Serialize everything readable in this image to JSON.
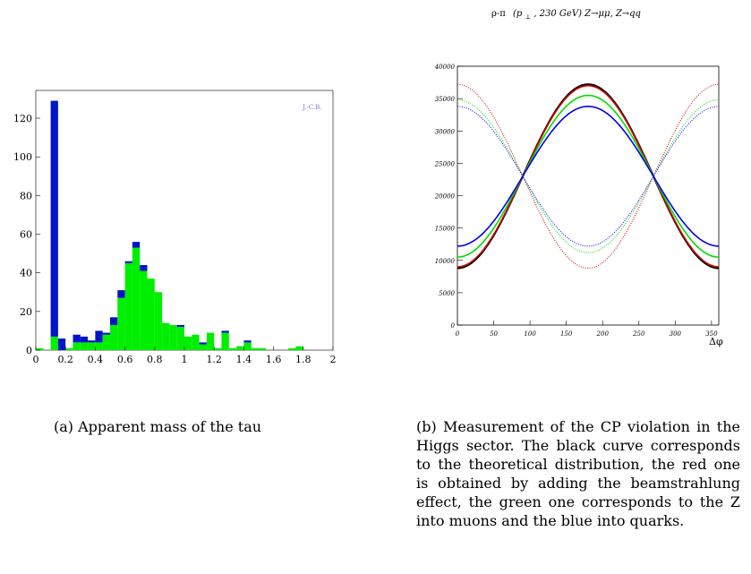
{
  "chart_data": [
    {
      "type": "bar",
      "stacked": true,
      "caption_label": "(a)",
      "caption_text": "Apparent mass of the tau",
      "watermark": "J.-C.B.",
      "xlim": [
        0,
        2
      ],
      "ylim": [
        0,
        130
      ],
      "xticks": [
        "0",
        "0.2",
        "0.4",
        "0.6",
        "0.8",
        "1",
        "1.2",
        "1.4",
        "1.6",
        "1.8",
        "2"
      ],
      "yticks": [
        "0",
        "20",
        "40",
        "60",
        "80",
        "100",
        "120"
      ],
      "bin_width": 0.05,
      "bin_start": 0,
      "colors": {
        "base": "#00ee00",
        "top": "#0014c8"
      },
      "series": [
        {
          "color": "#00ee00",
          "values": [
            1,
            0,
            7,
            0,
            1,
            4,
            4,
            4,
            4,
            8,
            13,
            27,
            45,
            53,
            41,
            37,
            30,
            14,
            13,
            12,
            7,
            8,
            3,
            9,
            1,
            9,
            1,
            2,
            4,
            1,
            1,
            0,
            0,
            0,
            1,
            2,
            0,
            0,
            0,
            0
          ]
        },
        {
          "color": "#0014c8",
          "values": [
            0,
            0,
            122,
            6,
            0,
            4,
            3,
            1,
            6,
            1,
            4,
            4,
            1,
            3,
            3,
            0,
            0,
            0,
            0,
            1,
            0,
            0,
            1,
            0,
            0,
            1,
            0,
            0,
            1,
            0,
            0,
            0,
            0,
            0,
            0,
            0,
            0,
            0,
            0,
            0
          ]
        }
      ]
    },
    {
      "type": "line",
      "title": "ρ-π  (p⊥,  230 GeV) Z→μμ, Z→qq",
      "title_parts": {
        "a": "ρ-π",
        "b": "(p",
        "sub": "⊥",
        "c": ", 230 GeV) Z→μμ, Z→qq"
      },
      "xlabel": "Δφ",
      "xlim": [
        0,
        360
      ],
      "ylim": [
        0,
        40000
      ],
      "xticks": [
        "0",
        "50",
        "100",
        "150",
        "200",
        "250",
        "300",
        "350"
      ],
      "yticks": [
        "0",
        "5000",
        "10000",
        "15000",
        "20000",
        "25000",
        "30000",
        "35000",
        "40000"
      ],
      "caption_label": "(b)",
      "caption_text": "Measurement of the CP violation in the Higgs sector. The black curve corresponds to the theoretical distribution, the red one is obtained by adding the beamstrahlung effect, the green one corresponds to the Z into muons and the blue into quarks.",
      "series": [
        {
          "color": "#000000",
          "style": "solid",
          "center": 23000,
          "amplitude": -14200
        },
        {
          "color": "#d00000",
          "style": "solid",
          "center": 23000,
          "amplitude": -14000
        },
        {
          "color": "#00dd00",
          "style": "solid",
          "center": 23000,
          "amplitude": -12500
        },
        {
          "color": "#0000ee",
          "style": "solid",
          "center": 23000,
          "amplitude": -10800
        },
        {
          "color": "#d00000",
          "style": "dotted",
          "center": 23000,
          "amplitude": 14200
        },
        {
          "color": "#00dd00",
          "style": "dotted",
          "center": 23000,
          "amplitude": 11800
        },
        {
          "color": "#0000ee",
          "style": "dotted",
          "center": 23000,
          "amplitude": 10800
        }
      ]
    }
  ]
}
